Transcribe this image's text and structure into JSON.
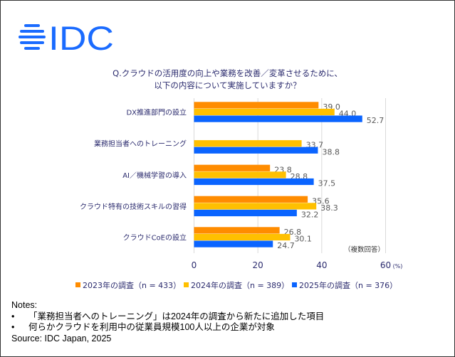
{
  "logo_text": "IDC",
  "title_lines": [
    "Q.クラウドの活用度の向上や業務を改善／変革させるために、",
    "以下の内容について実施していますか？"
  ],
  "chart_data": {
    "type": "bar",
    "orientation": "horizontal",
    "categories": [
      "DX推進部門の設立",
      "業務担当者へのトレーニング",
      "AI／機械学習の導入",
      "クラウド特有の技術スキルの習得",
      "クラウドCoEの設立"
    ],
    "series": [
      {
        "name": "2023年の調査（n = 433）",
        "color": "#FF8C00",
        "values": [
          39.0,
          null,
          23.8,
          35.6,
          26.8
        ]
      },
      {
        "name": "2024年の調査（n = 389）",
        "color": "#FFC000",
        "values": [
          44.0,
          33.7,
          28.8,
          38.3,
          30.1
        ]
      },
      {
        "name": "2025年の調査（n = 376）",
        "color": "#0A64FF",
        "values": [
          52.7,
          38.8,
          37.5,
          32.2,
          24.7
        ]
      }
    ],
    "xlim": [
      0,
      60
    ],
    "xticks": [
      "0",
      "20",
      "40",
      "60"
    ],
    "xtick_values": [
      0,
      20,
      40,
      60
    ],
    "x_unit": "(%)",
    "annotation": "（複数回答）",
    "grid": true,
    "legend_position": "bottom"
  },
  "notes": {
    "heading": "Notes:",
    "bullet": "•",
    "items": [
      "「業務担当者へのトレーニング」は2024年の調査から新たに追加した項目",
      "何らかクラウドを利用中の従業員規模100人以上の企業が対象"
    ],
    "source": "Source: IDC Japan, 2025"
  }
}
